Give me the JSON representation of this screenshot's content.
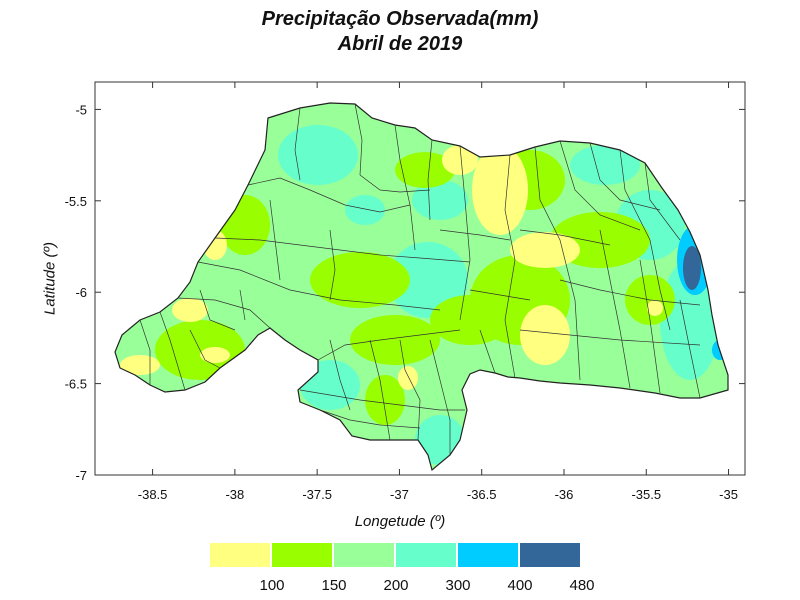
{
  "title": {
    "line1": "Precipitação Observada(mm)",
    "line2": "Abril de  2019"
  },
  "axes": {
    "xlabel": "Longetude (º)",
    "ylabel": "Latitude (º)",
    "xticks": [
      "-38.5",
      "-38",
      "-37.5",
      "-37",
      "-36.5",
      "-36",
      "-35.5",
      "-35"
    ],
    "yticks": [
      "-5",
      "-5.5",
      "-6",
      "-6.5",
      "-7"
    ],
    "xlim": [
      -38.85,
      -34.9
    ],
    "ylim": [
      -7.0,
      -4.85
    ]
  },
  "legend": {
    "bins": [
      {
        "color": "#ffff80",
        "label": ""
      },
      {
        "color": "#99ff00",
        "label": "100"
      },
      {
        "color": "#99ff99",
        "label": "150"
      },
      {
        "color": "#66ffcc",
        "label": "200"
      },
      {
        "color": "#00ccff",
        "label": "300"
      },
      {
        "color": "#336699",
        "label": "400"
      }
    ],
    "end_label": "480"
  }
}
